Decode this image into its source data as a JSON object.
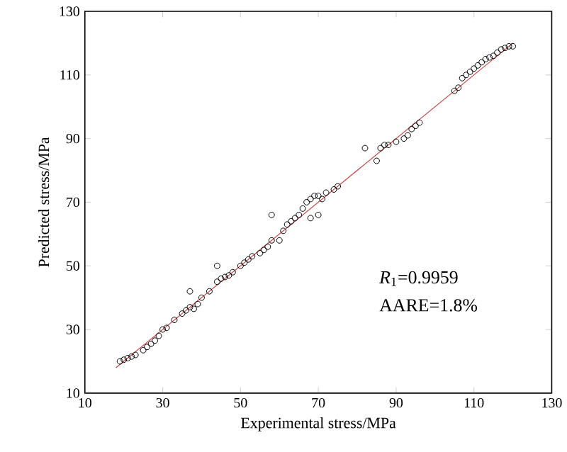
{
  "chart_data": {
    "type": "scatter",
    "xlabel": "Experimental stress/MPa",
    "ylabel": "Predicted stress/MPa",
    "annotations": [
      "*R*$_{1}$=0.9959",
      "AARE=1.8%"
    ],
    "xlim": [
      10,
      130
    ],
    "ylim": [
      10,
      130
    ],
    "xticks": [
      10,
      30,
      50,
      70,
      90,
      110,
      130
    ],
    "yticks": [
      10,
      30,
      50,
      70,
      90,
      110,
      130
    ],
    "grid": false,
    "series": [
      {
        "marker": "circle",
        "color": "#000000",
        "x": [
          19,
          20,
          21,
          22,
          23,
          25,
          26,
          27,
          28,
          29,
          30,
          31,
          33,
          35,
          36,
          37,
          38,
          39,
          40,
          37,
          44,
          42,
          44,
          45,
          46,
          47,
          48,
          50,
          51,
          52,
          53,
          55,
          56,
          57,
          58,
          58,
          60,
          61,
          62,
          63,
          64,
          65,
          66,
          67,
          68,
          69,
          70,
          71,
          72,
          70,
          68,
          74,
          75,
          82,
          85,
          86,
          87,
          88,
          90,
          92,
          93,
          94,
          95,
          96,
          105,
          106,
          107,
          108,
          109,
          110,
          111,
          112,
          113,
          114,
          115,
          116,
          117,
          118,
          119,
          120
        ],
        "values": [
          20,
          20.5,
          21,
          21.5,
          22,
          23.5,
          24.5,
          25.5,
          26.5,
          28,
          30,
          30.5,
          33,
          35,
          36,
          37,
          36.5,
          38,
          40,
          42,
          50,
          42,
          45,
          46,
          46.5,
          47,
          48,
          50,
          51,
          52,
          53,
          54,
          55,
          56,
          58,
          66,
          58,
          61,
          63,
          64,
          65,
          66,
          68,
          70,
          71,
          72,
          72,
          71,
          73,
          66,
          65,
          74,
          75,
          87,
          83,
          87,
          88,
          88,
          89,
          90,
          91,
          93,
          94,
          95,
          105,
          106,
          109,
          110,
          111,
          112,
          113,
          114,
          115,
          115.5,
          116,
          117,
          118,
          118.5,
          119,
          119
        ]
      },
      {
        "type": "line",
        "marker": "none",
        "line_style": "solid",
        "color": "#d04040",
        "x": [
          18,
          120
        ],
        "values": [
          18,
          120
        ]
      }
    ]
  }
}
